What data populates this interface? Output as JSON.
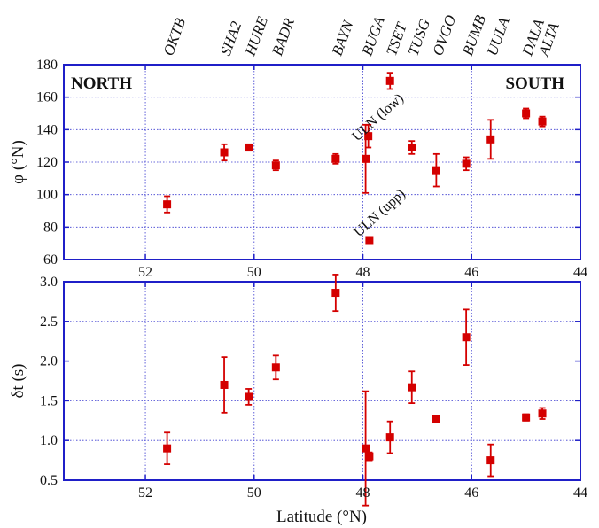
{
  "chart_data": [
    {
      "type": "scatter",
      "panel": "top",
      "ylabel": "φ (°N)",
      "xlim": [
        53.5,
        44
      ],
      "ylim": [
        60,
        180
      ],
      "x_ticks": [
        52,
        50,
        48,
        46,
        44
      ],
      "y_ticks": [
        60,
        80,
        100,
        120,
        140,
        160,
        180
      ],
      "grid": true,
      "annotations": [
        "NORTH",
        "SOUTH",
        "ULN (low)",
        "ULN (upp)"
      ],
      "points": [
        {
          "x": 51.6,
          "y": 94,
          "err": 5
        },
        {
          "x": 50.55,
          "y": 126,
          "err": 5
        },
        {
          "x": 50.1,
          "y": 129,
          "err": 2
        },
        {
          "x": 49.6,
          "y": 118,
          "err": 3
        },
        {
          "x": 48.5,
          "y": 122,
          "err": 3
        },
        {
          "x": 47.95,
          "y": 122,
          "err": 21
        },
        {
          "x": 47.9,
          "y": 136,
          "err": 7
        },
        {
          "x": 47.88,
          "y": 72,
          "err": 1
        },
        {
          "x": 47.5,
          "y": 170,
          "err": 5
        },
        {
          "x": 47.1,
          "y": 129,
          "err": 4
        },
        {
          "x": 46.65,
          "y": 115,
          "err": 10
        },
        {
          "x": 46.1,
          "y": 119,
          "err": 4
        },
        {
          "x": 45.65,
          "y": 134,
          "err": 12
        },
        {
          "x": 45.0,
          "y": 150,
          "err": 3
        },
        {
          "x": 44.7,
          "y": 145,
          "err": 3
        }
      ]
    },
    {
      "type": "scatter",
      "panel": "bottom",
      "xlabel": "Latitude (°N)",
      "ylabel": "δt (s)",
      "xlim": [
        53.5,
        44
      ],
      "ylim": [
        0.5,
        3.0
      ],
      "x_ticks": [
        52,
        50,
        48,
        46,
        44
      ],
      "y_ticks": [
        0.5,
        1.0,
        1.5,
        2.0,
        2.5,
        3.0
      ],
      "grid": true,
      "points": [
        {
          "x": 51.6,
          "y": 0.9,
          "err": 0.2
        },
        {
          "x": 50.55,
          "y": 1.7,
          "err": 0.35
        },
        {
          "x": 50.1,
          "y": 1.55,
          "err": 0.1
        },
        {
          "x": 49.6,
          "y": 1.92,
          "err": 0.15
        },
        {
          "x": 48.5,
          "y": 2.86,
          "err": 0.23
        },
        {
          "x": 47.95,
          "y": 0.9,
          "err": 0.72
        },
        {
          "x": 47.88,
          "y": 0.8,
          "err": 0.05
        },
        {
          "x": 47.5,
          "y": 1.04,
          "err": 0.2
        },
        {
          "x": 47.1,
          "y": 1.67,
          "err": 0.2
        },
        {
          "x": 46.65,
          "y": 1.27,
          "err": 0.04
        },
        {
          "x": 46.1,
          "y": 2.3,
          "err": 0.35
        },
        {
          "x": 45.65,
          "y": 0.75,
          "err": 0.2
        },
        {
          "x": 45.0,
          "y": 1.29,
          "err": 0.04
        },
        {
          "x": 44.7,
          "y": 1.34,
          "err": 0.07
        }
      ]
    }
  ],
  "stations": [
    {
      "name": "OKTB",
      "x": 51.6
    },
    {
      "name": "SHA2",
      "x": 50.55
    },
    {
      "name": "HURE",
      "x": 50.1
    },
    {
      "name": "BADR",
      "x": 49.6
    },
    {
      "name": "BAYN",
      "x": 48.5
    },
    {
      "name": "BUGA",
      "x": 47.95
    },
    {
      "name": "TSET",
      "x": 47.5
    },
    {
      "name": "TUSG",
      "x": 47.1
    },
    {
      "name": "OVGO",
      "x": 46.65
    },
    {
      "name": "BUMB",
      "x": 46.1
    },
    {
      "name": "UULA",
      "x": 45.65
    },
    {
      "name": "DALA",
      "x": 45.0
    },
    {
      "name": "ALTA",
      "x": 44.7
    }
  ],
  "colors": {
    "frame": "#1f1fc8",
    "grid": "#3a3ad0",
    "marker": "#d40000"
  }
}
